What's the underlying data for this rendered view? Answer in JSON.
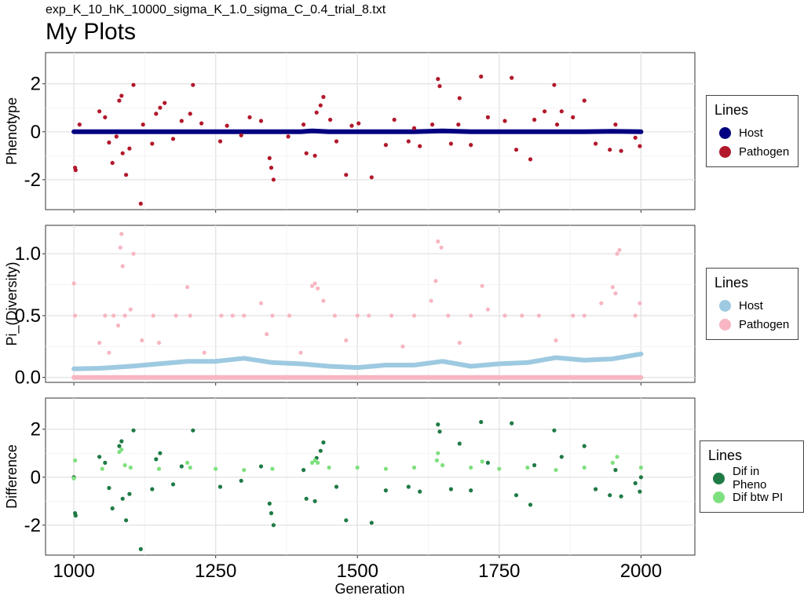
{
  "header": {
    "subtitle": "exp_K_10_hK_10000_sigma_K_1.0_sigma_C_0.4_trial_8.txt",
    "title": "My Plots"
  },
  "x_axis": {
    "label": "Generation",
    "ticks": [
      "1000",
      "1250",
      "1500",
      "1750",
      "2000"
    ]
  },
  "legends": [
    {
      "title": "Lines",
      "items": [
        {
          "label": "Host",
          "color": "#000080"
        },
        {
          "label": "Pathogen",
          "color": "#b2182b"
        }
      ]
    },
    {
      "title": "Lines",
      "items": [
        {
          "label": "Host",
          "color": "#9ecae1"
        },
        {
          "label": "Pathogen",
          "color": "#f7b6c2"
        }
      ]
    },
    {
      "title": "Lines",
      "items": [
        {
          "label": "Dif in Pheno",
          "color": "#1f7a45"
        },
        {
          "label": "Dif btw PI",
          "color": "#7fe07f"
        }
      ]
    }
  ],
  "chart_data": [
    {
      "type": "scatter",
      "title": "",
      "xlabel": "Generation",
      "ylabel": "Phenotype",
      "xlim": [
        950,
        2095
      ],
      "ylim": [
        -3.25,
        3.3
      ],
      "yticks": [
        "2",
        "0",
        "-2"
      ],
      "grid": true,
      "legend_position": "right",
      "series": [
        {
          "name": "Host",
          "color": "#000080",
          "x": [
            1000,
            1100,
            1200,
            1300,
            1400,
            1420,
            1450,
            1500,
            1600,
            1650,
            1700,
            1800,
            1900,
            1950,
            2000
          ],
          "y": [
            0,
            0,
            0,
            0,
            0,
            0.03,
            0,
            0,
            0,
            0.03,
            0,
            0,
            0,
            0.02,
            0
          ]
        },
        {
          "name": "Pathogen",
          "color": "#b2182b",
          "x": [
            1002,
            1003,
            1010,
            1045,
            1055,
            1062,
            1068,
            1075,
            1080,
            1084,
            1086,
            1092,
            1098,
            1105,
            1118,
            1122,
            1138,
            1145,
            1152,
            1160,
            1175,
            1190,
            1205,
            1210,
            1225,
            1258,
            1270,
            1295,
            1310,
            1330,
            1345,
            1348,
            1352,
            1378,
            1405,
            1410,
            1425,
            1428,
            1435,
            1440,
            1452,
            1463,
            1480,
            1490,
            1502,
            1525,
            1550,
            1565,
            1590,
            1600,
            1610,
            1632,
            1642,
            1645,
            1665,
            1678,
            1680,
            1700,
            1718,
            1730,
            1760,
            1772,
            1780,
            1805,
            1812,
            1830,
            1847,
            1852,
            1860,
            1880,
            1900,
            1920,
            1945,
            1955,
            1965,
            1990,
            1998
          ],
          "y": [
            -1.5,
            -1.6,
            0.3,
            0.85,
            0.6,
            -0.45,
            -1.3,
            -0.2,
            1.3,
            1.5,
            -0.9,
            -1.8,
            -0.7,
            1.95,
            -3.0,
            0.3,
            -0.5,
            0.75,
            1.0,
            1.2,
            -0.3,
            0.45,
            0.75,
            1.95,
            0.35,
            -0.4,
            0.25,
            -0.15,
            0.6,
            0.45,
            -1.1,
            -1.5,
            -2.0,
            -0.2,
            0.3,
            -0.9,
            -1.0,
            0.8,
            1.1,
            1.45,
            0.5,
            -0.4,
            -1.8,
            0.25,
            0.35,
            -1.9,
            -0.55,
            0.5,
            -0.4,
            0.15,
            -0.6,
            0.3,
            2.2,
            1.9,
            -0.5,
            0.3,
            1.4,
            -0.55,
            2.3,
            0.6,
            0.45,
            2.25,
            -0.75,
            -1.15,
            0.5,
            0.85,
            1.95,
            0.3,
            0.85,
            0.6,
            1.3,
            -0.5,
            -0.75,
            0.3,
            -0.8,
            -0.25,
            -0.6
          ]
        }
      ]
    },
    {
      "type": "scatter",
      "title": "",
      "xlabel": "Generation",
      "ylabel": "Pi_(Diversity)",
      "xlim": [
        950,
        2095
      ],
      "ylim": [
        -0.04,
        1.23
      ],
      "yticks": [
        "1.0",
        "0.5",
        "0.0"
      ],
      "grid": true,
      "legend_position": "right",
      "series": [
        {
          "name": "Host",
          "color": "#9ecae1",
          "x": [
            1000,
            1050,
            1100,
            1150,
            1200,
            1250,
            1300,
            1350,
            1400,
            1450,
            1500,
            1550,
            1600,
            1650,
            1700,
            1750,
            1800,
            1850,
            1900,
            1950,
            2000
          ],
          "y": [
            0.07,
            0.075,
            0.09,
            0.11,
            0.13,
            0.13,
            0.155,
            0.12,
            0.11,
            0.09,
            0.08,
            0.1,
            0.1,
            0.13,
            0.09,
            0.11,
            0.12,
            0.16,
            0.14,
            0.15,
            0.19
          ]
        },
        {
          "name": "Pathogen",
          "color": "#f7b6c2",
          "x": [
            1000,
            1002,
            1045,
            1055,
            1062,
            1070,
            1078,
            1082,
            1084,
            1086,
            1090,
            1100,
            1105,
            1120,
            1140,
            1150,
            1180,
            1200,
            1205,
            1230,
            1260,
            1280,
            1300,
            1330,
            1340,
            1350,
            1380,
            1400,
            1420,
            1425,
            1430,
            1440,
            1460,
            1480,
            1500,
            1520,
            1560,
            1580,
            1600,
            1630,
            1638,
            1642,
            1648,
            1660,
            1680,
            1700,
            1720,
            1730,
            1760,
            1790,
            1820,
            1850,
            1880,
            1900,
            1930,
            1950,
            1955,
            1958,
            1962,
            1990,
            1998
          ],
          "y": [
            0.76,
            0.5,
            0.28,
            0.5,
            0.2,
            0.5,
            0.42,
            1.05,
            1.16,
            0.9,
            0.5,
            0.55,
            1.0,
            0.3,
            0.5,
            0.28,
            0.5,
            0.73,
            0.5,
            0.2,
            0.5,
            0.5,
            0.5,
            0.6,
            0.35,
            0.5,
            0.5,
            0.2,
            0.74,
            0.76,
            0.72,
            0.62,
            0.5,
            0.3,
            0.5,
            0.5,
            0.5,
            0.25,
            0.5,
            0.62,
            0.78,
            1.1,
            1.05,
            0.5,
            0.28,
            0.5,
            0.74,
            0.55,
            0.5,
            0.5,
            0.5,
            0.3,
            0.5,
            0.5,
            0.6,
            0.73,
            0.68,
            1.0,
            1.03,
            0.5,
            0.6
          ]
        },
        {
          "name": "Pathogen",
          "color": "#f7b6c2",
          "x": [
            1000,
            2000
          ],
          "y": [
            0,
            0
          ]
        }
      ]
    },
    {
      "type": "scatter",
      "title": "",
      "xlabel": "Generation",
      "ylabel": "Difference",
      "xlim": [
        950,
        2095
      ],
      "ylim": [
        -3.25,
        3.3
      ],
      "yticks": [
        "2",
        "0",
        "-2"
      ],
      "grid": true,
      "legend_position": "right",
      "series": [
        {
          "name": "Dif in Pheno",
          "color": "#1f7a45",
          "x": [
            1000,
            1002,
            1003,
            1045,
            1055,
            1062,
            1068,
            1080,
            1084,
            1086,
            1092,
            1098,
            1105,
            1118,
            1138,
            1145,
            1152,
            1175,
            1190,
            1210,
            1258,
            1295,
            1330,
            1345,
            1348,
            1352,
            1405,
            1410,
            1425,
            1428,
            1435,
            1440,
            1463,
            1480,
            1525,
            1550,
            1590,
            1610,
            1642,
            1645,
            1665,
            1680,
            1700,
            1718,
            1730,
            1772,
            1780,
            1805,
            1812,
            1847,
            1860,
            1900,
            1920,
            1945,
            1955,
            1965,
            1990,
            1998,
            2000
          ],
          "y": [
            0,
            -1.5,
            -1.6,
            0.85,
            0.6,
            -0.45,
            -1.3,
            1.3,
            1.5,
            -0.9,
            -1.8,
            -0.7,
            1.95,
            -3.0,
            -0.5,
            0.75,
            1.0,
            -0.3,
            0.45,
            1.95,
            -0.4,
            -0.15,
            0.45,
            -1.1,
            -1.5,
            -2.0,
            0.3,
            -0.9,
            -1.0,
            0.8,
            1.1,
            1.45,
            -0.4,
            -1.8,
            -1.9,
            -0.55,
            -0.4,
            -0.6,
            2.2,
            1.9,
            -0.5,
            1.4,
            -0.55,
            2.3,
            0.6,
            2.25,
            -0.75,
            -1.15,
            0.5,
            1.95,
            0.85,
            1.3,
            -0.5,
            -0.75,
            0.3,
            -0.8,
            -0.25,
            -0.6,
            0
          ]
        },
        {
          "name": "Dif btw PI",
          "color": "#7fe07f",
          "x": [
            1000,
            1002,
            1050,
            1080,
            1084,
            1090,
            1100,
            1150,
            1200,
            1205,
            1250,
            1300,
            1350,
            1420,
            1425,
            1430,
            1450,
            1500,
            1550,
            1600,
            1640,
            1642,
            1650,
            1700,
            1720,
            1750,
            1800,
            1850,
            1900,
            1950,
            1958,
            2000
          ],
          "y": [
            -0.05,
            0.7,
            0.35,
            1.05,
            1.15,
            0.5,
            0.4,
            0.35,
            0.6,
            0.4,
            0.35,
            0.3,
            0.35,
            0.6,
            0.7,
            0.6,
            0.4,
            0.4,
            0.35,
            0.4,
            0.7,
            1.0,
            0.5,
            0.4,
            0.65,
            0.35,
            0.4,
            0.3,
            0.4,
            0.6,
            0.85,
            0.4
          ]
        }
      ]
    }
  ]
}
